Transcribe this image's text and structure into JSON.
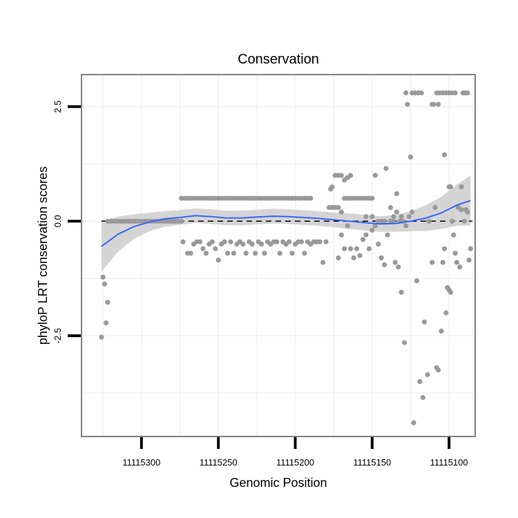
{
  "chart_data": {
    "type": "scatter",
    "title": "Conservation",
    "xlabel": "Genomic Position",
    "ylabel": "phyloP LRT conservation scores",
    "x_reversed": true,
    "xlim": [
      11115339,
      11115083
    ],
    "ylim": [
      -4.7,
      3.2
    ],
    "x_ticks": [
      11115300,
      11115250,
      11115200,
      11115150,
      11115100
    ],
    "x_tick_labels": [
      "11115300",
      "11115250",
      "11115200",
      "11115150",
      "11115100"
    ],
    "y_ticks": [
      2.5,
      0.0,
      -2.5
    ],
    "y_tick_labels": [
      "2.5",
      "0.0",
      "-2.5"
    ],
    "reference_line": {
      "y": 0,
      "style": "dashed"
    },
    "colors": {
      "points": "#999999",
      "smooth": "#3366ff",
      "ribbon": "#d4d4d4",
      "grid": "#f2f2f2",
      "frame": "#7f7f7f"
    },
    "series": [
      {
        "name": "scores",
        "points": [
          [
            11115326,
            -2.53
          ],
          [
            11115325,
            -1.22
          ],
          [
            11115324,
            -1.37
          ],
          [
            11115323,
            -2.22
          ],
          [
            11115322,
            -1.77
          ],
          [
            11115322,
            0.0
          ],
          [
            11115320,
            0.0
          ],
          [
            11115318,
            0.0
          ],
          [
            11115316,
            0.0
          ],
          [
            11115314,
            0.0
          ],
          [
            11115312,
            0.0
          ],
          [
            11115310,
            0.0
          ],
          [
            11115308,
            0.0
          ],
          [
            11115306,
            0.0
          ],
          [
            11115304,
            0.0
          ],
          [
            11115302,
            0.0
          ],
          [
            11115300,
            0.0
          ],
          [
            11115298,
            0.0
          ],
          [
            11115296,
            0.0
          ],
          [
            11115294,
            0.0
          ],
          [
            11115292,
            0.0
          ],
          [
            11115290,
            0.0
          ],
          [
            11115288,
            0.0
          ],
          [
            11115286,
            0.0
          ],
          [
            11115284,
            0.0
          ],
          [
            11115282,
            0.0
          ],
          [
            11115280,
            0.0
          ],
          [
            11115278,
            0.0
          ],
          [
            11115276,
            0.0
          ],
          [
            11115274,
            0.0
          ],
          [
            11115274,
            0.5
          ],
          [
            11115272,
            0.5
          ],
          [
            11115270,
            0.5
          ],
          [
            11115268,
            0.5
          ],
          [
            11115266,
            0.5
          ],
          [
            11115264,
            0.5
          ],
          [
            11115262,
            0.5
          ],
          [
            11115260,
            0.5
          ],
          [
            11115258,
            0.5
          ],
          [
            11115256,
            0.5
          ],
          [
            11115254,
            0.5
          ],
          [
            11115252,
            0.5
          ],
          [
            11115250,
            0.5
          ],
          [
            11115248,
            0.5
          ],
          [
            11115246,
            0.5
          ],
          [
            11115244,
            0.5
          ],
          [
            11115242,
            0.5
          ],
          [
            11115240,
            0.5
          ],
          [
            11115238,
            0.5
          ],
          [
            11115236,
            0.5
          ],
          [
            11115234,
            0.5
          ],
          [
            11115232,
            0.5
          ],
          [
            11115230,
            0.5
          ],
          [
            11115228,
            0.5
          ],
          [
            11115226,
            0.5
          ],
          [
            11115224,
            0.5
          ],
          [
            11115222,
            0.5
          ],
          [
            11115220,
            0.5
          ],
          [
            11115218,
            0.5
          ],
          [
            11115216,
            0.5
          ],
          [
            11115214,
            0.5
          ],
          [
            11115212,
            0.5
          ],
          [
            11115210,
            0.5
          ],
          [
            11115208,
            0.5
          ],
          [
            11115206,
            0.5
          ],
          [
            11115204,
            0.5
          ],
          [
            11115202,
            0.5
          ],
          [
            11115200,
            0.5
          ],
          [
            11115198,
            0.5
          ],
          [
            11115196,
            0.5
          ],
          [
            11115194,
            0.5
          ],
          [
            11115192,
            0.5
          ],
          [
            11115190,
            0.5
          ],
          [
            11115273,
            -0.45
          ],
          [
            11115270,
            -0.7
          ],
          [
            11115268,
            -0.7
          ],
          [
            11115266,
            -0.5
          ],
          [
            11115264,
            -0.45
          ],
          [
            11115262,
            -0.45
          ],
          [
            11115260,
            -0.6
          ],
          [
            11115258,
            -0.7
          ],
          [
            11115256,
            -0.5
          ],
          [
            11115254,
            -0.45
          ],
          [
            11115252,
            -0.6
          ],
          [
            11115250,
            -0.85
          ],
          [
            11115248,
            -0.5
          ],
          [
            11115246,
            -0.45
          ],
          [
            11115244,
            -0.7
          ],
          [
            11115242,
            -0.45
          ],
          [
            11115240,
            -0.7
          ],
          [
            11115238,
            -0.5
          ],
          [
            11115236,
            -0.45
          ],
          [
            11115234,
            -0.5
          ],
          [
            11115232,
            -0.7
          ],
          [
            11115230,
            -0.45
          ],
          [
            11115228,
            -0.5
          ],
          [
            11115226,
            -0.7
          ],
          [
            11115224,
            -0.45
          ],
          [
            11115222,
            -0.5
          ],
          [
            11115220,
            -0.7
          ],
          [
            11115218,
            -0.45
          ],
          [
            11115216,
            -0.5
          ],
          [
            11115214,
            -0.45
          ],
          [
            11115212,
            -0.45
          ],
          [
            11115210,
            -0.7
          ],
          [
            11115208,
            -0.45
          ],
          [
            11115206,
            -0.5
          ],
          [
            11115204,
            -0.45
          ],
          [
            11115202,
            -0.7
          ],
          [
            11115200,
            -0.5
          ],
          [
            11115198,
            -0.45
          ],
          [
            11115196,
            -0.45
          ],
          [
            11115194,
            -0.7
          ],
          [
            11115192,
            -0.45
          ],
          [
            11115190,
            -0.5
          ],
          [
            11115188,
            -0.45
          ],
          [
            11115186,
            -0.45
          ],
          [
            11115184,
            -0.45
          ],
          [
            11115182,
            -0.9
          ],
          [
            11115180,
            -0.45
          ],
          [
            11115178,
            0.3
          ],
          [
            11115176,
            0.3
          ],
          [
            11115174,
            0.3
          ],
          [
            11115172,
            0.3
          ],
          [
            11115170,
            0.2
          ],
          [
            11115168,
            0.5
          ],
          [
            11115166,
            0.5
          ],
          [
            11115164,
            0.5
          ],
          [
            11115162,
            0.5
          ],
          [
            11115160,
            0.5
          ],
          [
            11115158,
            0.5
          ],
          [
            11115156,
            0.5
          ],
          [
            11115154,
            0.5
          ],
          [
            11115152,
            0.5
          ],
          [
            11115150,
            0.5
          ],
          [
            11115177,
            0.7
          ],
          [
            11115176,
            0.75
          ],
          [
            11115174,
            1.0
          ],
          [
            11115172,
            1.0
          ],
          [
            11115170,
            1.0
          ],
          [
            11115168,
            0.9
          ],
          [
            11115166,
            0.95
          ],
          [
            11115164,
            1.0
          ],
          [
            11115172,
            -0.8
          ],
          [
            11115170,
            -0.3
          ],
          [
            11115168,
            -0.6
          ],
          [
            11115166,
            -0.1
          ],
          [
            11115164,
            -0.6
          ],
          [
            11115162,
            -0.8
          ],
          [
            11115160,
            -0.6
          ],
          [
            11115158,
            -0.75
          ],
          [
            11115156,
            -0.4
          ],
          [
            11115154,
            -0.3
          ],
          [
            11115152,
            -0.6
          ],
          [
            11115150,
            -0.2
          ],
          [
            11115148,
            -0.1
          ],
          [
            11115146,
            -0.5
          ],
          [
            11115144,
            -0.8
          ],
          [
            11115142,
            -0.95
          ],
          [
            11115140,
            -0.3
          ],
          [
            11115138,
            0.0
          ],
          [
            11115136,
            0.1
          ],
          [
            11115154,
            0.1
          ],
          [
            11115150,
            0.1
          ],
          [
            11115146,
            0.0
          ],
          [
            11115144,
            0.0
          ],
          [
            11115142,
            0.0
          ],
          [
            11115148,
            1.0
          ],
          [
            11115141,
            1.15
          ],
          [
            11115134,
            0.6
          ],
          [
            11115138,
            0.3
          ],
          [
            11115136,
            0.0
          ],
          [
            11115134,
            0.2
          ],
          [
            11115132,
            0.0
          ],
          [
            11115135,
            -0.9
          ],
          [
            11115133,
            -1.0
          ],
          [
            11115131,
            -1.55
          ],
          [
            11115129,
            -2.65
          ],
          [
            11115131,
            0.1
          ],
          [
            11115130,
            0.0
          ],
          [
            11115128,
            -0.1
          ],
          [
            11115126,
            0.1
          ],
          [
            11115128,
            2.8
          ],
          [
            11115127,
            2.55
          ],
          [
            11115125,
            1.4
          ],
          [
            11115124,
            0.2
          ],
          [
            11115124,
            2.8
          ],
          [
            11115122,
            2.8
          ],
          [
            11115120,
            2.8
          ],
          [
            11115118,
            2.8
          ],
          [
            11115123,
            -4.4
          ],
          [
            11115121,
            -1.3
          ],
          [
            11115119,
            -3.5
          ],
          [
            11115117,
            -3.85
          ],
          [
            11115116,
            -2.2
          ],
          [
            11115114,
            -3.35
          ],
          [
            11115113,
            0.0
          ],
          [
            11115111,
            -0.9
          ],
          [
            11115109,
            0.3
          ],
          [
            11115111,
            2.55
          ],
          [
            11115110,
            2.55
          ],
          [
            11115108,
            2.8
          ],
          [
            11115107,
            2.55
          ],
          [
            11115106,
            2.8
          ],
          [
            11115108,
            -3.2
          ],
          [
            11115107,
            -3.25
          ],
          [
            11115105,
            -2.4
          ],
          [
            11115103,
            1.45
          ],
          [
            11115104,
            2.8
          ],
          [
            11115102,
            2.8
          ],
          [
            11115100,
            2.8
          ],
          [
            11115098,
            2.8
          ],
          [
            11115096,
            2.8
          ],
          [
            11115104,
            -0.9
          ],
          [
            11115103,
            -0.6
          ],
          [
            11115102,
            -2.0
          ],
          [
            11115101,
            -1.45
          ],
          [
            11115100,
            -1.5
          ],
          [
            11115099,
            -1.55
          ],
          [
            11115100,
            0.75
          ],
          [
            11115099,
            0.75
          ],
          [
            11115098,
            0.0
          ],
          [
            11115097,
            -0.3
          ],
          [
            11115096,
            -0.7
          ],
          [
            11115095,
            -0.9
          ],
          [
            11115094,
            0.3
          ],
          [
            11115093,
            -1.0
          ],
          [
            11115092,
            0.75
          ],
          [
            11115092,
            0.25
          ],
          [
            11115091,
            2.8
          ],
          [
            11115090,
            2.8
          ],
          [
            11115089,
            2.8
          ],
          [
            11115088,
            2.8
          ],
          [
            11115090,
            0.0
          ],
          [
            11115089,
            0.25
          ],
          [
            11115088,
            0.2
          ],
          [
            11115087,
            -0.85
          ],
          [
            11115086,
            -0.6
          ]
        ]
      }
    ],
    "smooth_line": [
      [
        11115326,
        -0.55
      ],
      [
        11115315,
        -0.28
      ],
      [
        11115305,
        -0.12
      ],
      [
        11115295,
        -0.02
      ],
      [
        11115285,
        0.05
      ],
      [
        11115275,
        0.08
      ],
      [
        11115265,
        0.12
      ],
      [
        11115255,
        0.1
      ],
      [
        11115245,
        0.07
      ],
      [
        11115235,
        0.07
      ],
      [
        11115225,
        0.09
      ],
      [
        11115215,
        0.11
      ],
      [
        11115205,
        0.1
      ],
      [
        11115195,
        0.08
      ],
      [
        11115185,
        0.06
      ],
      [
        11115175,
        0.03
      ],
      [
        11115165,
        0.0
      ],
      [
        11115155,
        -0.03
      ],
      [
        11115145,
        -0.06
      ],
      [
        11115135,
        -0.05
      ],
      [
        11115125,
        0.0
      ],
      [
        11115115,
        0.07
      ],
      [
        11115105,
        0.18
      ],
      [
        11115095,
        0.35
      ],
      [
        11115086,
        0.45
      ]
    ],
    "ribbon_halfwidth": [
      0.55,
      0.38,
      0.27,
      0.2,
      0.17,
      0.16,
      0.16,
      0.16,
      0.16,
      0.16,
      0.16,
      0.16,
      0.16,
      0.16,
      0.16,
      0.16,
      0.17,
      0.17,
      0.17,
      0.18,
      0.22,
      0.28,
      0.35,
      0.45,
      0.55
    ]
  }
}
